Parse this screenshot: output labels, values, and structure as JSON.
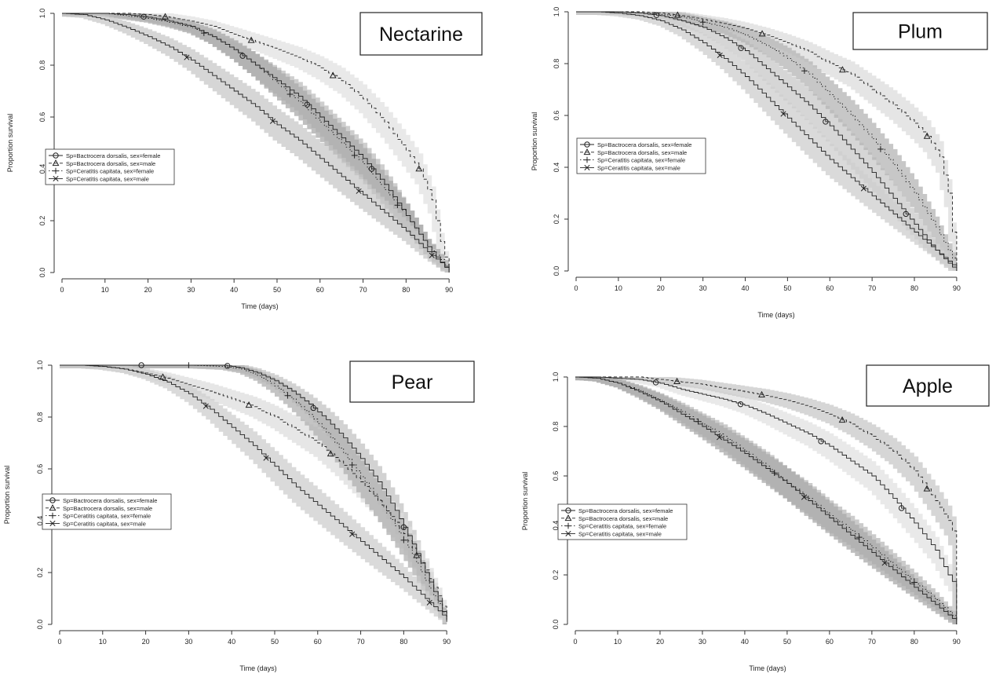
{
  "chart_data": [
    {
      "type": "line",
      "panel_label": "Nectarine",
      "xlabel": "Time (days)",
      "ylabel": "Proportion survival",
      "xlim": [
        0,
        98
      ],
      "ylim": [
        0,
        1
      ],
      "xticks": [
        0,
        10,
        20,
        30,
        40,
        50,
        60,
        70,
        80,
        90
      ],
      "yticks": [
        0.0,
        0.2,
        0.4,
        0.6,
        0.8,
        1.0
      ],
      "grid": false,
      "legend_position": "middle-left",
      "series": [
        {
          "name": "Sp=Bactrocera dorsalis, sex=female",
          "marker": "circle",
          "dash": "solid",
          "band": "#bdbdbd",
          "x": [
            0,
            5,
            10,
            15,
            20,
            25,
            30,
            35,
            40,
            45,
            50,
            55,
            60,
            65,
            70,
            75,
            80,
            85,
            88,
            90
          ],
          "y": [
            1.0,
            1.0,
            1.0,
            0.995,
            0.985,
            0.97,
            0.95,
            0.91,
            0.86,
            0.8,
            0.74,
            0.68,
            0.6,
            0.52,
            0.44,
            0.34,
            0.22,
            0.1,
            0.04,
            0.0
          ],
          "markers_x": [
            19,
            42,
            57,
            72
          ]
        },
        {
          "name": "Sp=Bactrocera dorsalis, sex=male",
          "marker": "triangle",
          "dash": "dashed",
          "band": "#e1e1e1",
          "x": [
            0,
            5,
            10,
            15,
            20,
            25,
            30,
            35,
            40,
            45,
            50,
            55,
            60,
            65,
            70,
            75,
            80,
            83,
            86,
            88,
            90
          ],
          "y": [
            1.0,
            1.0,
            1.0,
            1.0,
            0.995,
            0.985,
            0.97,
            0.95,
            0.92,
            0.89,
            0.86,
            0.83,
            0.79,
            0.74,
            0.67,
            0.58,
            0.47,
            0.4,
            0.28,
            0.12,
            0.0
          ],
          "markers_x": [
            24,
            44,
            63,
            83
          ]
        },
        {
          "name": "Sp=Ceratitis capitata, sex=female",
          "marker": "plus",
          "dash": "dotted",
          "band": "#a9a9a9",
          "x": [
            0,
            5,
            10,
            15,
            20,
            25,
            30,
            35,
            40,
            45,
            50,
            55,
            60,
            65,
            70,
            75,
            80,
            85,
            88,
            90
          ],
          "y": [
            1.0,
            1.0,
            1.0,
            0.99,
            0.98,
            0.965,
            0.945,
            0.91,
            0.86,
            0.8,
            0.73,
            0.66,
            0.58,
            0.5,
            0.42,
            0.32,
            0.22,
            0.1,
            0.05,
            0.01
          ],
          "markers_x": [
            33,
            53,
            68,
            78
          ]
        },
        {
          "name": "Sp=Ceratitis capitata, sex=male",
          "marker": "cross",
          "dash": "solid",
          "band": "#c8c8c8",
          "x": [
            0,
            5,
            10,
            15,
            20,
            25,
            30,
            35,
            40,
            45,
            50,
            55,
            60,
            65,
            70,
            75,
            80,
            85,
            90
          ],
          "y": [
            1.0,
            0.995,
            0.975,
            0.945,
            0.91,
            0.87,
            0.82,
            0.76,
            0.7,
            0.64,
            0.57,
            0.51,
            0.44,
            0.37,
            0.3,
            0.23,
            0.16,
            0.08,
            0.01
          ],
          "markers_x": [
            29,
            49,
            69,
            86
          ]
        }
      ]
    },
    {
      "type": "line",
      "panel_label": "Plum",
      "xlabel": "Time (days)",
      "ylabel": "Proportion survival",
      "xlim": [
        0,
        98
      ],
      "ylim": [
        0,
        1
      ],
      "xticks": [
        0,
        10,
        20,
        30,
        40,
        50,
        60,
        70,
        80,
        90
      ],
      "yticks": [
        0.0,
        0.2,
        0.4,
        0.6,
        0.8,
        1.0
      ],
      "grid": false,
      "legend_position": "middle-left",
      "series": [
        {
          "name": "Sp=Bactrocera dorsalis, sex=female",
          "marker": "circle",
          "dash": "solid",
          "band": "#c8c8c8",
          "x": [
            0,
            5,
            10,
            15,
            20,
            25,
            30,
            35,
            40,
            45,
            50,
            55,
            60,
            65,
            70,
            75,
            80,
            85,
            88,
            90
          ],
          "y": [
            1.0,
            1.0,
            1.0,
            0.995,
            0.985,
            0.965,
            0.94,
            0.9,
            0.85,
            0.78,
            0.71,
            0.64,
            0.56,
            0.47,
            0.38,
            0.28,
            0.18,
            0.08,
            0.03,
            0.0
          ],
          "markers_x": [
            19,
            39,
            59,
            78
          ]
        },
        {
          "name": "Sp=Bactrocera dorsalis, sex=male",
          "marker": "triangle",
          "dash": "dashed",
          "band": "#dcdcdc",
          "x": [
            0,
            5,
            10,
            15,
            20,
            25,
            30,
            35,
            40,
            45,
            50,
            55,
            60,
            65,
            70,
            75,
            80,
            83,
            86,
            88,
            90
          ],
          "y": [
            1.0,
            1.0,
            1.0,
            1.0,
            0.995,
            0.985,
            0.97,
            0.955,
            0.935,
            0.91,
            0.88,
            0.845,
            0.8,
            0.76,
            0.7,
            0.64,
            0.57,
            0.52,
            0.44,
            0.3,
            0.0
          ],
          "markers_x": [
            24,
            44,
            63,
            83
          ]
        },
        {
          "name": "Sp=Ceratitis capitata, sex=female",
          "marker": "plus",
          "dash": "dotted",
          "band": "#b4b4b4",
          "x": [
            0,
            5,
            10,
            15,
            20,
            25,
            30,
            35,
            40,
            45,
            50,
            55,
            60,
            65,
            70,
            75,
            80,
            85,
            88,
            90
          ],
          "y": [
            1.0,
            1.0,
            1.0,
            0.995,
            0.99,
            0.98,
            0.96,
            0.94,
            0.91,
            0.87,
            0.82,
            0.76,
            0.68,
            0.6,
            0.51,
            0.41,
            0.3,
            0.17,
            0.08,
            0.02
          ],
          "markers_x": [
            30,
            54,
            72
          ]
        },
        {
          "name": "Sp=Ceratitis capitata, sex=male",
          "marker": "cross",
          "dash": "solid",
          "band": "#cdcdcd",
          "x": [
            0,
            5,
            10,
            15,
            20,
            25,
            30,
            35,
            40,
            45,
            50,
            55,
            60,
            65,
            70,
            75,
            80,
            85,
            90
          ],
          "y": [
            1.0,
            1.0,
            0.995,
            0.985,
            0.965,
            0.93,
            0.88,
            0.82,
            0.75,
            0.67,
            0.59,
            0.51,
            0.43,
            0.36,
            0.29,
            0.22,
            0.15,
            0.08,
            0.01
          ],
          "markers_x": [
            34,
            49,
            68
          ]
        }
      ]
    },
    {
      "type": "line",
      "panel_label": "Pear",
      "xlabel": "Time (days)",
      "ylabel": "Proportion survival",
      "xlim": [
        0,
        98
      ],
      "ylim": [
        0,
        1
      ],
      "xticks": [
        0,
        10,
        20,
        30,
        40,
        50,
        60,
        70,
        80,
        90
      ],
      "yticks": [
        0.0,
        0.2,
        0.4,
        0.6,
        0.8,
        1.0
      ],
      "grid": false,
      "legend_position": "middle-left",
      "series": [
        {
          "name": "Sp=Bactrocera dorsalis, sex=female",
          "marker": "circle",
          "dash": "solid",
          "band": "#c3c3c3",
          "x": [
            0,
            10,
            20,
            30,
            38,
            42,
            46,
            50,
            54,
            58,
            62,
            66,
            70,
            74,
            78,
            82,
            85,
            88,
            90
          ],
          "y": [
            1.0,
            1.0,
            1.0,
            1.0,
            1.0,
            0.99,
            0.97,
            0.94,
            0.9,
            0.85,
            0.79,
            0.72,
            0.64,
            0.55,
            0.44,
            0.31,
            0.2,
            0.09,
            0.01
          ],
          "markers_x": [
            19,
            39,
            59,
            80
          ]
        },
        {
          "name": "Sp=Bactrocera dorsalis, sex=male",
          "marker": "triangle",
          "dash": "dashed",
          "band": "#dddddd",
          "x": [
            0,
            5,
            10,
            15,
            20,
            25,
            30,
            35,
            40,
            45,
            50,
            55,
            60,
            65,
            70,
            75,
            80,
            85,
            88,
            90
          ],
          "y": [
            1.0,
            1.0,
            0.995,
            0.985,
            0.97,
            0.95,
            0.925,
            0.9,
            0.87,
            0.84,
            0.8,
            0.75,
            0.7,
            0.63,
            0.55,
            0.46,
            0.35,
            0.21,
            0.11,
            0.03
          ],
          "markers_x": [
            24,
            44,
            63,
            83
          ]
        },
        {
          "name": "Sp=Ceratitis capitata, sex=female",
          "marker": "plus",
          "dash": "dotted",
          "band": "#b0b0b0",
          "x": [
            0,
            10,
            20,
            30,
            38,
            42,
            46,
            50,
            54,
            58,
            62,
            66,
            70,
            74,
            78,
            82,
            85,
            88,
            90
          ],
          "y": [
            1.0,
            1.0,
            1.0,
            1.0,
            0.995,
            0.985,
            0.96,
            0.92,
            0.87,
            0.81,
            0.74,
            0.66,
            0.57,
            0.48,
            0.38,
            0.27,
            0.17,
            0.08,
            0.01
          ],
          "markers_x": [
            30,
            53,
            68,
            80
          ]
        },
        {
          "name": "Sp=Ceratitis capitata, sex=male",
          "marker": "cross",
          "dash": "solid",
          "band": "#cdcdcd",
          "x": [
            0,
            5,
            10,
            15,
            20,
            25,
            30,
            35,
            40,
            45,
            50,
            55,
            60,
            65,
            70,
            75,
            80,
            85,
            90
          ],
          "y": [
            1.0,
            1.0,
            0.995,
            0.985,
            0.965,
            0.935,
            0.89,
            0.83,
            0.76,
            0.69,
            0.61,
            0.53,
            0.46,
            0.39,
            0.32,
            0.25,
            0.18,
            0.1,
            0.02
          ],
          "markers_x": [
            34,
            48,
            68,
            86
          ]
        }
      ]
    },
    {
      "type": "line",
      "panel_label": "Apple",
      "xlabel": "Time (days)",
      "ylabel": "Proportion survival",
      "xlim": [
        0,
        98
      ],
      "ylim": [
        0,
        1
      ],
      "xticks": [
        0,
        10,
        20,
        30,
        40,
        50,
        60,
        70,
        80,
        90
      ],
      "yticks": [
        0.0,
        0.2,
        0.4,
        0.6,
        0.8,
        1.0
      ],
      "grid": false,
      "legend_position": "middle-left",
      "series": [
        {
          "name": "Sp=Bactrocera dorsalis, sex=female",
          "marker": "circle",
          "dash": "solid",
          "band": "#e1e1e1",
          "x": [
            0,
            5,
            10,
            15,
            20,
            25,
            30,
            35,
            40,
            45,
            50,
            55,
            60,
            65,
            70,
            75,
            80,
            85,
            88,
            89.9,
            90
          ],
          "y": [
            1.0,
            1.0,
            0.995,
            0.99,
            0.975,
            0.95,
            0.93,
            0.91,
            0.885,
            0.85,
            0.81,
            0.77,
            0.72,
            0.66,
            0.6,
            0.51,
            0.41,
            0.3,
            0.2,
            0.15,
            0.0
          ],
          "markers_x": [
            19,
            39,
            58,
            77
          ]
        },
        {
          "name": "Sp=Bactrocera dorsalis, sex=male",
          "marker": "triangle",
          "dash": "dashed",
          "band": "#c8c8c8",
          "x": [
            0,
            5,
            10,
            15,
            20,
            25,
            30,
            35,
            40,
            45,
            50,
            55,
            60,
            65,
            70,
            75,
            80,
            85,
            88,
            89.9,
            90
          ],
          "y": [
            1.0,
            1.0,
            1.0,
            1.0,
            0.99,
            0.98,
            0.97,
            0.955,
            0.94,
            0.925,
            0.905,
            0.88,
            0.85,
            0.81,
            0.76,
            0.7,
            0.62,
            0.5,
            0.42,
            0.34,
            0.0
          ],
          "markers_x": [
            24,
            44,
            63,
            83
          ]
        },
        {
          "name": "Sp=Ceratitis capitata, sex=female",
          "marker": "plus",
          "dash": "dotted",
          "band": "#b9b9b9",
          "x": [
            0,
            5,
            10,
            15,
            20,
            25,
            30,
            35,
            40,
            45,
            50,
            55,
            60,
            65,
            70,
            75,
            80,
            85,
            90
          ],
          "y": [
            1.0,
            0.995,
            0.975,
            0.945,
            0.905,
            0.86,
            0.81,
            0.76,
            0.7,
            0.64,
            0.57,
            0.51,
            0.44,
            0.38,
            0.31,
            0.24,
            0.17,
            0.1,
            0.02
          ],
          "markers_x": [
            29,
            47,
            67,
            80
          ]
        },
        {
          "name": "Sp=Ceratitis capitata, sex=male",
          "marker": "cross",
          "dash": "solid",
          "band": "#a9a9a9",
          "x": [
            0,
            5,
            10,
            15,
            20,
            25,
            30,
            35,
            40,
            45,
            50,
            55,
            60,
            65,
            70,
            75,
            80,
            85,
            90
          ],
          "y": [
            1.0,
            0.995,
            0.975,
            0.94,
            0.9,
            0.85,
            0.8,
            0.745,
            0.69,
            0.63,
            0.57,
            0.5,
            0.43,
            0.36,
            0.29,
            0.22,
            0.15,
            0.08,
            0.01
          ],
          "markers_x": [
            34,
            54,
            73
          ]
        }
      ]
    }
  ]
}
